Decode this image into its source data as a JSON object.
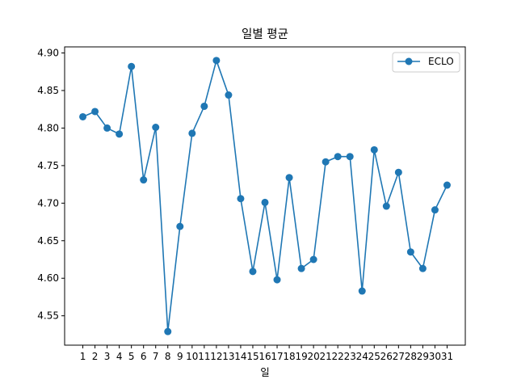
{
  "chart_data": {
    "type": "line",
    "title": "일별 평균",
    "xlabel": "일",
    "ylabel": "",
    "x": [
      1,
      2,
      3,
      4,
      5,
      6,
      7,
      8,
      9,
      10,
      11,
      12,
      13,
      14,
      15,
      16,
      17,
      18,
      19,
      20,
      21,
      22,
      23,
      24,
      25,
      26,
      27,
      28,
      29,
      30,
      31
    ],
    "series": [
      {
        "name": "ECLO",
        "color": "#1f77b4",
        "marker": "circle",
        "values": [
          4.815,
          4.822,
          4.8,
          4.792,
          4.882,
          4.731,
          4.801,
          4.529,
          4.669,
          4.793,
          4.829,
          4.89,
          4.844,
          4.706,
          4.609,
          4.701,
          4.598,
          4.734,
          4.613,
          4.625,
          4.755,
          4.762,
          4.762,
          4.583,
          4.771,
          4.696,
          4.741,
          4.635,
          4.613,
          4.691,
          4.724
        ]
      }
    ],
    "xlim": [
      -0.5,
      32.5
    ],
    "ylim": [
      4.5109,
      4.9081
    ],
    "yticks": [
      4.55,
      4.6,
      4.65,
      4.7,
      4.75,
      4.8,
      4.85,
      4.9
    ],
    "ytick_labels": [
      "4.55",
      "4.60",
      "4.65",
      "4.70",
      "4.75",
      "4.80",
      "4.85",
      "4.90"
    ],
    "xtick_labels": [
      "1",
      "2",
      "3",
      "4",
      "5",
      "6",
      "7",
      "8",
      "9",
      "10",
      "11",
      "12",
      "13",
      "14",
      "15",
      "16",
      "17",
      "18",
      "19",
      "20",
      "21",
      "22",
      "23",
      "24",
      "25",
      "26",
      "27",
      "28",
      "29",
      "30",
      "31"
    ],
    "grid": false,
    "legend_position": "top-right"
  }
}
